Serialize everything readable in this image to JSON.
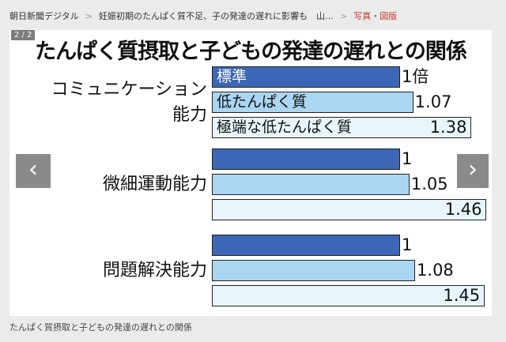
{
  "breadcrumb": [
    "朝日新聞デジタル",
    "妊娠初期のたんぱく質不足、子の発達の遅れに影響も　山…",
    "写真・図版"
  ],
  "breadcrumb_separator": ">",
  "counter": "2 / 2",
  "nav": {
    "prev_icon": "chevron-left-icon",
    "next_icon": "chevron-right-icon"
  },
  "caption": "たんぱく質摂取と子どもの発達の遅れとの関係",
  "colors": {
    "standard": "#3b67b6",
    "low": "#aad6f1",
    "extreme": "#e8f5fb"
  },
  "chart_data": {
    "type": "bar",
    "title": "たんぱく質摂取と子どもの発達の遅れとの関係",
    "categories": [
      "コミュニケーション能力",
      "微細運動能力",
      "問題解決能力"
    ],
    "category_lines": [
      [
        "コミュニケーション",
        "能力"
      ],
      [
        "微細運動能力"
      ],
      [
        "問題解決能力"
      ]
    ],
    "series": [
      {
        "name": "標準",
        "values": [
          1,
          1,
          1
        ],
        "labels": [
          "1倍",
          "1",
          "1"
        ]
      },
      {
        "name": "低たんぱく質",
        "values": [
          1.07,
          1.05,
          1.08
        ],
        "labels": [
          "1.07",
          "1.05",
          "1.08"
        ]
      },
      {
        "name": "極端な低たんぱく質",
        "values": [
          1.38,
          1.46,
          1.45
        ],
        "labels": [
          "1.38",
          "1.46",
          "1.45"
        ]
      }
    ],
    "unit": "倍"
  }
}
